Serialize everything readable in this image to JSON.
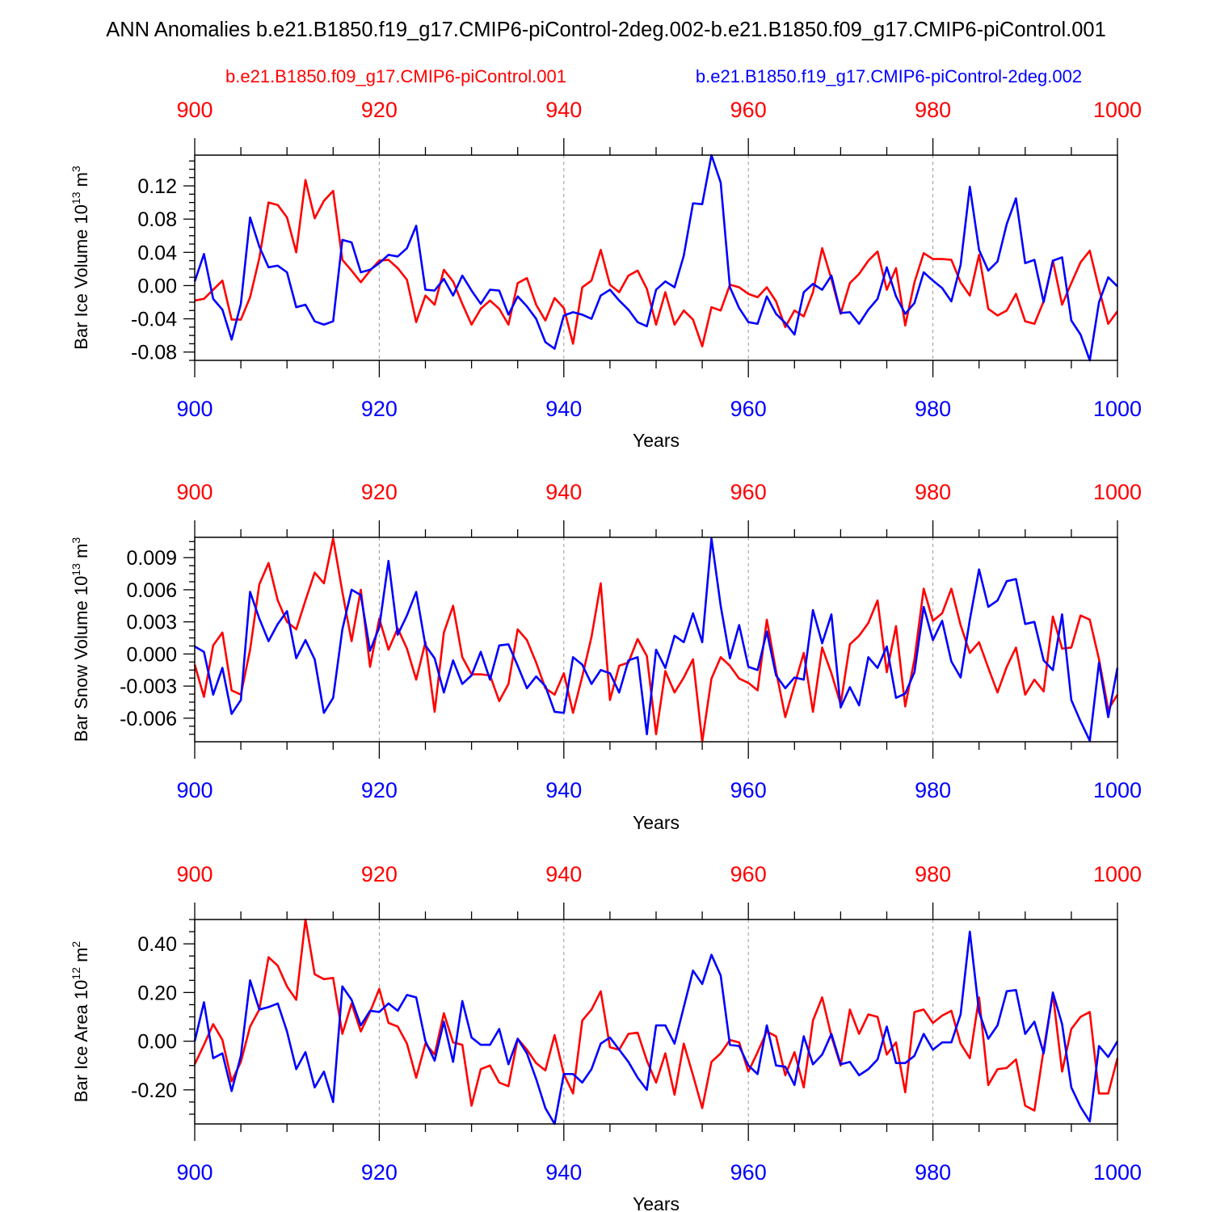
{
  "title": "ANN Anomalies b.e21.B1850.f19_g17.CMIP6-piControl-2deg.002-b.e21.B1850.f09_g17.CMIP6-piControl.001",
  "legend": [
    {
      "name": "b.e21.B1850.f09_g17.CMIP6-piControl.001",
      "color": "#ff0000"
    },
    {
      "name": "b.e21.B1850.f19_g17.CMIP6-piControl-2deg.002",
      "color": "#0000ff"
    }
  ],
  "colors": {
    "red": "#ff0000",
    "blue": "#0000ff",
    "axis": "#000000",
    "grid": "#999999"
  },
  "chart_data": [
    {
      "type": "line",
      "ylabel": "Bar Ice Volume 10",
      "ylabel_exp": "13",
      "ylabel_unit": "m",
      "ylabel_unit_exp": "3",
      "xlabel": "Years",
      "xlim": [
        900,
        1000
      ],
      "ylim": [
        -0.09,
        0.157
      ],
      "xticks": [
        900,
        920,
        940,
        960,
        980,
        1000
      ],
      "yticks": [
        -0.08,
        -0.04,
        0.0,
        0.04,
        0.08,
        0.12
      ],
      "ytick_labels": [
        "-0.08",
        "-0.04",
        "0.00",
        "0.04",
        "0.08",
        "0.12"
      ],
      "series": [
        {
          "name": "b.e21.B1850.f09_g17.CMIP6-piControl.001",
          "color": "red",
          "values": [
            -0.018,
            -0.016,
            -0.005,
            0.006,
            -0.041,
            -0.041,
            -0.014,
            0.033,
            0.1,
            0.097,
            0.082,
            0.04,
            0.127,
            0.081,
            0.102,
            0.114,
            0.031,
            0.018,
            0.004,
            0.018,
            0.03,
            0.031,
            0.021,
            0.007,
            -0.044,
            -0.012,
            -0.023,
            0.019,
            0.005,
            -0.022,
            -0.047,
            -0.028,
            -0.018,
            -0.028,
            -0.047,
            0.003,
            0.009,
            -0.023,
            -0.042,
            -0.015,
            -0.027,
            -0.07,
            -0.002,
            0.006,
            0.043,
            0.001,
            -0.008,
            0.012,
            0.018,
            -0.004,
            -0.047,
            -0.008,
            -0.047,
            -0.03,
            -0.041,
            -0.073,
            -0.026,
            -0.03,
            0.001,
            -0.002,
            -0.01,
            -0.014,
            -0.002,
            -0.019,
            -0.05,
            -0.03,
            -0.037,
            -0.008,
            0.045,
            0.008,
            -0.034,
            0.003,
            0.014,
            0.03,
            0.041,
            -0.005,
            0.021,
            -0.048,
            0.004,
            0.039,
            0.032,
            0.032,
            0.031,
            0.004,
            -0.012,
            0.037,
            -0.028,
            -0.036,
            -0.03,
            -0.01,
            -0.043,
            -0.046,
            -0.019,
            0.03,
            -0.023,
            0.003,
            0.028,
            0.042,
            -0.004,
            -0.046,
            -0.031
          ]
        },
        {
          "name": "b.e21.B1850.f19_g17.CMIP6-piControl-2deg.002",
          "color": "blue",
          "values": [
            0.005,
            0.038,
            -0.016,
            -0.029,
            -0.065,
            -0.022,
            0.082,
            0.047,
            0.022,
            0.024,
            0.016,
            -0.026,
            -0.023,
            -0.043,
            -0.047,
            -0.043,
            0.055,
            0.052,
            0.016,
            0.019,
            0.027,
            0.037,
            0.035,
            0.045,
            0.072,
            -0.005,
            -0.006,
            0.008,
            -0.012,
            0.012,
            -0.006,
            -0.022,
            -0.005,
            -0.006,
            -0.035,
            -0.013,
            -0.025,
            -0.04,
            -0.068,
            -0.076,
            -0.036,
            -0.032,
            -0.035,
            -0.04,
            -0.012,
            -0.005,
            -0.018,
            -0.029,
            -0.044,
            -0.049,
            -0.005,
            0.005,
            -0.002,
            0.036,
            0.099,
            0.098,
            0.157,
            0.124,
            -0.002,
            -0.027,
            -0.044,
            -0.046,
            -0.013,
            -0.034,
            -0.045,
            -0.059,
            -0.008,
            0.002,
            -0.005,
            0.012,
            -0.033,
            -0.032,
            -0.046,
            -0.029,
            -0.016,
            0.022,
            -0.013,
            -0.034,
            -0.021,
            0.016,
            0.006,
            -0.003,
            -0.019,
            0.025,
            0.119,
            0.043,
            0.018,
            0.029,
            0.074,
            0.105,
            0.027,
            0.031,
            -0.02,
            0.03,
            0.034,
            -0.042,
            -0.059,
            -0.09,
            -0.02,
            0.01,
            -0.001
          ]
        }
      ]
    },
    {
      "type": "line",
      "ylabel": "Bar Snow Volume 10",
      "ylabel_exp": "13",
      "ylabel_unit": "m",
      "ylabel_unit_exp": "3",
      "xlabel": "Years",
      "xlim": [
        900,
        1000
      ],
      "ylim": [
        -0.0082,
        0.0109
      ],
      "xticks": [
        900,
        920,
        940,
        960,
        980,
        1000
      ],
      "yticks": [
        -0.006,
        -0.003,
        0.0,
        0.003,
        0.006,
        0.009
      ],
      "ytick_labels": [
        "-0.006",
        "-0.003",
        "0.000",
        "0.003",
        "0.006",
        "0.009"
      ],
      "series": [
        {
          "name": "b.e21.B1850.f09_g17.CMIP6-piControl.001",
          "color": "red",
          "values": [
            -0.001,
            -0.004,
            0.0008,
            0.002,
            -0.0034,
            -0.0038,
            0.0004,
            0.0065,
            0.0085,
            0.005,
            0.003,
            0.0023,
            0.005,
            0.0076,
            0.0066,
            0.0108,
            0.0058,
            0.0012,
            0.006,
            -0.0012,
            0.0033,
            0.0004,
            0.0024,
            0.0005,
            -0.0024,
            0.0011,
            -0.0054,
            0.002,
            0.0045,
            -0.0003,
            -0.0019,
            -0.0019,
            -0.002,
            -0.0044,
            -0.0028,
            0.0023,
            0.0013,
            -0.0008,
            -0.0032,
            -0.0038,
            -0.0018,
            -0.0055,
            -0.0021,
            0.0016,
            0.0066,
            -0.0043,
            -0.0011,
            -0.0008,
            0.0014,
            -0.0002,
            -0.0075,
            -0.0016,
            -0.0036,
            -0.0022,
            -0.0005,
            -0.0082,
            -0.0023,
            -0.0003,
            -0.0011,
            -0.0023,
            -0.0027,
            -0.0034,
            0.0032,
            -0.0016,
            -0.0059,
            -0.0029,
            0.0001,
            -0.0054,
            0.0006,
            -0.0018,
            -0.0047,
            0.0009,
            0.0017,
            0.0029,
            0.005,
            -0.0017,
            0.0026,
            -0.0049,
            -0.0005,
            0.0061,
            0.0031,
            0.0038,
            0.0061,
            0.0027,
            0.0001,
            0.0011,
            -0.0013,
            -0.0036,
            -0.0012,
            0.0006,
            -0.0038,
            -0.0024,
            -0.0035,
            0.0035,
            0.0005,
            0.0006,
            0.0036,
            0.0032,
            -0.0005,
            -0.0052,
            -0.0038
          ]
        },
        {
          "name": "b.e21.B1850.f19_g17.CMIP6-piControl-2deg.002",
          "color": "blue",
          "values": [
            0.0007,
            0.0002,
            -0.0038,
            -0.0013,
            -0.0056,
            -0.0043,
            0.0058,
            0.0033,
            0.0012,
            0.0028,
            0.004,
            -0.0004,
            0.0013,
            -0.0005,
            -0.0055,
            -0.0041,
            0.0023,
            0.006,
            0.0055,
            0.0003,
            0.0025,
            0.0087,
            0.0018,
            0.0036,
            0.0058,
            0.0008,
            -0.0004,
            -0.0036,
            -0.0006,
            -0.0028,
            -0.002,
            0.0002,
            -0.0024,
            0.0008,
            0.0009,
            -0.0011,
            -0.0032,
            -0.0021,
            -0.003,
            -0.0054,
            -0.0055,
            -0.0003,
            -0.001,
            -0.0028,
            -0.0015,
            -0.0018,
            -0.0036,
            -0.0006,
            -0.0003,
            -0.0075,
            0.0004,
            -0.0013,
            0.0017,
            0.0011,
            0.0038,
            0.0011,
            0.0108,
            0.0045,
            -0.0004,
            0.0027,
            -0.0012,
            -0.0015,
            0.0021,
            -0.002,
            -0.0032,
            -0.0022,
            -0.0024,
            0.0041,
            0.001,
            0.0037,
            -0.005,
            -0.0031,
            -0.0048,
            -0.0003,
            -0.0013,
            0.0007,
            -0.0041,
            -0.0037,
            -0.0017,
            0.0044,
            0.0013,
            0.0031,
            -0.0007,
            -0.0022,
            0.0032,
            0.0079,
            0.0044,
            0.005,
            0.0068,
            0.007,
            0.0028,
            0.003,
            -0.0006,
            -0.0015,
            0.0037,
            -0.0043,
            -0.0063,
            -0.0081,
            -0.0008,
            -0.0059,
            -0.0013
          ]
        }
      ]
    },
    {
      "type": "line",
      "ylabel": "Bar Ice Area 10",
      "ylabel_exp": "12",
      "ylabel_unit": "m",
      "ylabel_unit_exp": "2",
      "xlabel": "Years",
      "xlim": [
        900,
        1000
      ],
      "ylim": [
        -0.34,
        0.5
      ],
      "xticks": [
        900,
        920,
        940,
        960,
        980,
        1000
      ],
      "yticks": [
        -0.2,
        0.0,
        0.2,
        0.4
      ],
      "ytick_labels": [
        "-0.20",
        "0.00",
        "0.20",
        "0.40"
      ],
      "series": [
        {
          "name": "b.e21.B1850.f09_g17.CMIP6-piControl.001",
          "color": "red",
          "values": [
            -0.095,
            -0.015,
            0.07,
            0.005,
            -0.165,
            -0.085,
            0.06,
            0.13,
            0.345,
            0.31,
            0.225,
            0.17,
            0.5,
            0.275,
            0.255,
            0.26,
            0.03,
            0.155,
            0.04,
            0.12,
            0.215,
            0.075,
            0.06,
            -0.01,
            -0.15,
            -0.01,
            -0.055,
            0.115,
            -0.005,
            -0.015,
            -0.265,
            -0.115,
            -0.1,
            -0.17,
            -0.185,
            0.01,
            -0.035,
            -0.09,
            -0.12,
            0.025,
            -0.135,
            -0.215,
            0.085,
            0.13,
            0.205,
            -0.025,
            -0.035,
            0.03,
            0.035,
            -0.08,
            -0.17,
            -0.05,
            -0.22,
            -0.01,
            -0.14,
            -0.275,
            -0.085,
            -0.05,
            0.005,
            -0.005,
            -0.125,
            -0.045,
            0.04,
            0.02,
            -0.14,
            -0.045,
            -0.19,
            0.085,
            0.18,
            0.02,
            -0.1,
            0.13,
            0.03,
            0.11,
            0.1,
            -0.055,
            -0.005,
            -0.21,
            0.12,
            0.13,
            0.075,
            0.105,
            0.125,
            -0.01,
            -0.07,
            0.18,
            -0.18,
            -0.115,
            -0.11,
            -0.075,
            -0.265,
            -0.285,
            -0.035,
            0.195,
            -0.125,
            0.05,
            0.1,
            0.12,
            -0.215,
            -0.215,
            -0.07
          ]
        },
        {
          "name": "b.e21.B1850.f19_g17.CMIP6-piControl-2deg.002",
          "color": "blue",
          "values": [
            0.0,
            0.16,
            -0.07,
            -0.05,
            -0.205,
            -0.06,
            0.25,
            0.13,
            0.14,
            0.155,
            0.04,
            -0.115,
            -0.045,
            -0.19,
            -0.125,
            -0.25,
            0.225,
            0.17,
            0.065,
            0.125,
            0.12,
            0.155,
            0.125,
            0.19,
            0.18,
            0.0,
            -0.08,
            0.08,
            -0.085,
            0.165,
            0.015,
            -0.015,
            -0.015,
            0.05,
            -0.095,
            0.01,
            -0.05,
            -0.155,
            -0.275,
            -0.34,
            -0.135,
            -0.135,
            -0.17,
            -0.115,
            -0.01,
            0.015,
            -0.035,
            -0.085,
            -0.15,
            -0.2,
            0.065,
            0.065,
            -0.01,
            0.14,
            0.29,
            0.235,
            0.355,
            0.27,
            -0.015,
            -0.02,
            -0.1,
            -0.135,
            0.065,
            -0.1,
            -0.105,
            -0.18,
            0.02,
            -0.095,
            -0.055,
            0.03,
            -0.095,
            -0.085,
            -0.14,
            -0.115,
            -0.075,
            0.06,
            -0.09,
            -0.09,
            -0.06,
            0.03,
            -0.035,
            -0.005,
            -0.005,
            0.11,
            0.45,
            0.12,
            0.01,
            0.065,
            0.205,
            0.21,
            0.03,
            0.08,
            -0.05,
            0.2,
            0.07,
            -0.19,
            -0.27,
            -0.33,
            -0.02,
            -0.065,
            0.0
          ]
        }
      ]
    }
  ]
}
